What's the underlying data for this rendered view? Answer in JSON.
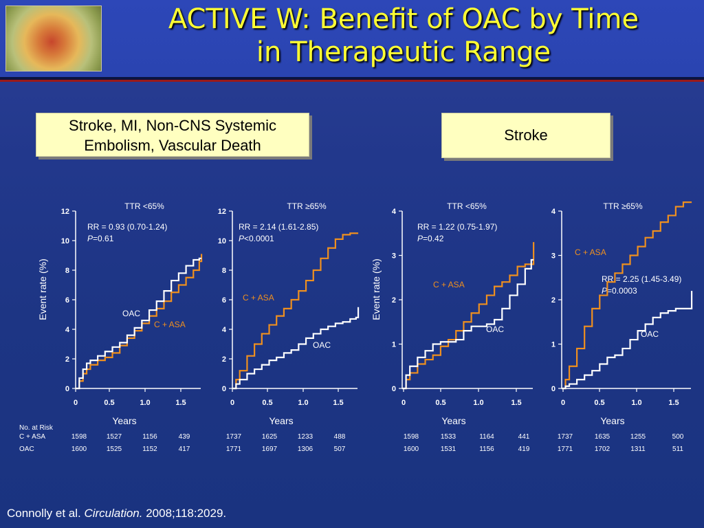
{
  "slide": {
    "title_line1": "ACTIVE W: Benefit of OAC by Time",
    "title_line2": "in Therapeutic Range",
    "box_left_line1": "Stroke, MI, Non-CNS Systemic",
    "box_left_line2": "Embolism, Vascular Death",
    "box_right": "Stroke",
    "citation_author": "Connolly et al. ",
    "citation_journal": "Circulation.",
    "citation_rest": " 2008;118:2029.",
    "ylabel": "Event rate (%)",
    "xlabel": "Years",
    "risk_header": "No. at Risk",
    "colors": {
      "c_asa": "#f0901e",
      "oac": "#ffffff",
      "title": "#ffff33",
      "box": "#ffffc0"
    }
  },
  "chart_data": [
    {
      "type": "line",
      "title": "TTR <65%",
      "ylim": [
        0,
        12
      ],
      "yticks": [
        "0",
        "2",
        "4",
        "6",
        "8",
        "10",
        "12"
      ],
      "xlim": [
        0,
        1.7
      ],
      "xticks": [
        "0",
        "0.5",
        "1.0",
        "1.5"
      ],
      "stat_rr": "RR = 0.93 (0.70-1.24)",
      "stat_p_label": "P",
      "stat_p_value": "=0.61",
      "series": [
        {
          "name": "C + ASA",
          "x": [
            0,
            0.05,
            0.1,
            0.15,
            0.2,
            0.3,
            0.4,
            0.5,
            0.6,
            0.7,
            0.8,
            0.9,
            1.0,
            1.1,
            1.2,
            1.3,
            1.4,
            1.5,
            1.6,
            1.68,
            1.71
          ],
          "y": [
            0,
            0.5,
            1.0,
            1.3,
            1.6,
            1.9,
            2.1,
            2.4,
            2.9,
            3.4,
            3.9,
            4.4,
            4.9,
            5.4,
            5.9,
            6.5,
            7.0,
            7.5,
            8.0,
            8.6,
            9.1
          ]
        },
        {
          "name": "OAC",
          "x": [
            0,
            0.05,
            0.1,
            0.15,
            0.2,
            0.3,
            0.4,
            0.5,
            0.6,
            0.7,
            0.8,
            0.9,
            1.0,
            1.1,
            1.2,
            1.3,
            1.4,
            1.5,
            1.6,
            1.68,
            1.71
          ],
          "y": [
            0,
            0.7,
            1.3,
            1.7,
            1.9,
            2.2,
            2.5,
            2.8,
            3.1,
            3.6,
            4.1,
            4.6,
            5.3,
            5.9,
            6.6,
            7.3,
            7.8,
            8.3,
            8.7,
            8.8,
            8.8
          ]
        }
      ],
      "labels": {
        "c_asa": "C + ASA",
        "oac": "OAC"
      },
      "at_risk": {
        "c_asa": [
          "1598",
          "1527",
          "1156",
          "439"
        ],
        "oac": [
          "1600",
          "1525",
          "1152",
          "417"
        ]
      }
    },
    {
      "type": "line",
      "title": "TTR ≥65%",
      "ylim": [
        0,
        12
      ],
      "yticks": [
        "0",
        "2",
        "4",
        "6",
        "8",
        "10",
        "12"
      ],
      "xlim": [
        0,
        1.7
      ],
      "xticks": [
        "0",
        "0.5",
        "1.0",
        "1.5"
      ],
      "stat_rr": "RR = 2.14 (1.61-2.85)",
      "stat_p_label": "P",
      "stat_p_value": "<0.0001",
      "series": [
        {
          "name": "C + ASA",
          "x": [
            0,
            0.05,
            0.1,
            0.2,
            0.3,
            0.4,
            0.5,
            0.6,
            0.7,
            0.8,
            0.9,
            1.0,
            1.1,
            1.2,
            1.3,
            1.4,
            1.5,
            1.6,
            1.71
          ],
          "y": [
            0,
            0.6,
            1.2,
            2.2,
            3.0,
            3.7,
            4.3,
            4.9,
            5.4,
            6.0,
            6.6,
            7.3,
            8.0,
            8.8,
            9.5,
            10.1,
            10.4,
            10.5,
            10.5
          ]
        },
        {
          "name": "OAC",
          "x": [
            0,
            0.05,
            0.1,
            0.2,
            0.3,
            0.4,
            0.5,
            0.6,
            0.7,
            0.8,
            0.9,
            1.0,
            1.1,
            1.2,
            1.3,
            1.4,
            1.5,
            1.6,
            1.68,
            1.71
          ],
          "y": [
            0,
            0.3,
            0.6,
            1.0,
            1.3,
            1.6,
            1.9,
            2.1,
            2.4,
            2.6,
            3.0,
            3.4,
            3.7,
            4.0,
            4.2,
            4.4,
            4.5,
            4.7,
            4.8,
            5.5
          ]
        }
      ],
      "labels": {
        "c_asa": "C + ASA",
        "oac": "OAC"
      },
      "at_risk": {
        "c_asa": [
          "1737",
          "1625",
          "1233",
          "488"
        ],
        "oac": [
          "1771",
          "1697",
          "1306",
          "507"
        ]
      }
    },
    {
      "type": "line",
      "title": "TTR <65%",
      "ylim": [
        0,
        4
      ],
      "yticks": [
        "0",
        "1",
        "2",
        "3",
        "4"
      ],
      "xlim": [
        0,
        1.7
      ],
      "xticks": [
        "0",
        "0.5",
        "1.0",
        "1.5"
      ],
      "stat_rr": "RR = 1.22 (0.75-1.97)",
      "stat_p_label": "P",
      "stat_p_value": "=0.42",
      "series": [
        {
          "name": "C + ASA",
          "x": [
            0,
            0.05,
            0.1,
            0.2,
            0.3,
            0.4,
            0.5,
            0.6,
            0.7,
            0.8,
            0.9,
            1.0,
            1.1,
            1.2,
            1.3,
            1.4,
            1.5,
            1.6,
            1.68,
            1.71
          ],
          "y": [
            0,
            0.2,
            0.35,
            0.55,
            0.65,
            0.75,
            0.95,
            1.1,
            1.3,
            1.5,
            1.7,
            1.9,
            2.1,
            2.3,
            2.4,
            2.55,
            2.75,
            2.8,
            2.8,
            3.3
          ]
        },
        {
          "name": "OAC",
          "x": [
            0,
            0.05,
            0.1,
            0.2,
            0.3,
            0.4,
            0.5,
            0.6,
            0.7,
            0.8,
            0.9,
            1.0,
            1.1,
            1.2,
            1.3,
            1.4,
            1.5,
            1.6,
            1.68,
            1.71
          ],
          "y": [
            0,
            0.3,
            0.5,
            0.7,
            0.85,
            1.0,
            1.05,
            1.05,
            1.1,
            1.3,
            1.4,
            1.4,
            1.45,
            1.55,
            1.8,
            2.1,
            2.35,
            2.7,
            2.9,
            2.9
          ]
        }
      ],
      "labels": {
        "c_asa": "C + ASA",
        "oac": "OAC"
      },
      "at_risk": {
        "c_asa": [
          "1598",
          "1533",
          "1164",
          "441"
        ],
        "oac": [
          "1600",
          "1531",
          "1156",
          "419"
        ]
      }
    },
    {
      "type": "line",
      "title": "TTR ≥65%",
      "ylim": [
        0,
        4
      ],
      "yticks": [
        "0",
        "1",
        "2",
        "3",
        "4"
      ],
      "xlim": [
        0,
        1.7
      ],
      "xticks": [
        "0",
        "0.5",
        "1.0",
        "1.5"
      ],
      "stat_rr": "RR = 2.25 (1.45-3.49)",
      "stat_p_label": "P",
      "stat_p_value": "=0.0003",
      "series": [
        {
          "name": "C + ASA",
          "x": [
            0,
            0.05,
            0.1,
            0.2,
            0.3,
            0.4,
            0.5,
            0.6,
            0.7,
            0.8,
            0.9,
            1.0,
            1.1,
            1.2,
            1.3,
            1.4,
            1.5,
            1.6,
            1.71
          ],
          "y": [
            0,
            0.2,
            0.5,
            0.9,
            1.4,
            1.8,
            2.1,
            2.4,
            2.6,
            2.8,
            3.0,
            3.2,
            3.4,
            3.55,
            3.75,
            3.9,
            4.1,
            4.2,
            4.2
          ]
        },
        {
          "name": "OAC",
          "x": [
            0,
            0.05,
            0.1,
            0.2,
            0.3,
            0.4,
            0.5,
            0.6,
            0.7,
            0.8,
            0.9,
            1.0,
            1.1,
            1.2,
            1.3,
            1.4,
            1.5,
            1.6,
            1.68,
            1.71
          ],
          "y": [
            0,
            0.05,
            0.1,
            0.2,
            0.3,
            0.4,
            0.55,
            0.7,
            0.75,
            0.9,
            1.1,
            1.3,
            1.45,
            1.6,
            1.7,
            1.75,
            1.8,
            1.8,
            1.8,
            2.2
          ]
        }
      ],
      "labels": {
        "c_asa": "C + ASA",
        "oac": "OAC"
      },
      "at_risk": {
        "c_asa": [
          "1737",
          "1635",
          "1255",
          "500"
        ],
        "oac": [
          "1771",
          "1702",
          "1311",
          "511"
        ]
      }
    }
  ]
}
